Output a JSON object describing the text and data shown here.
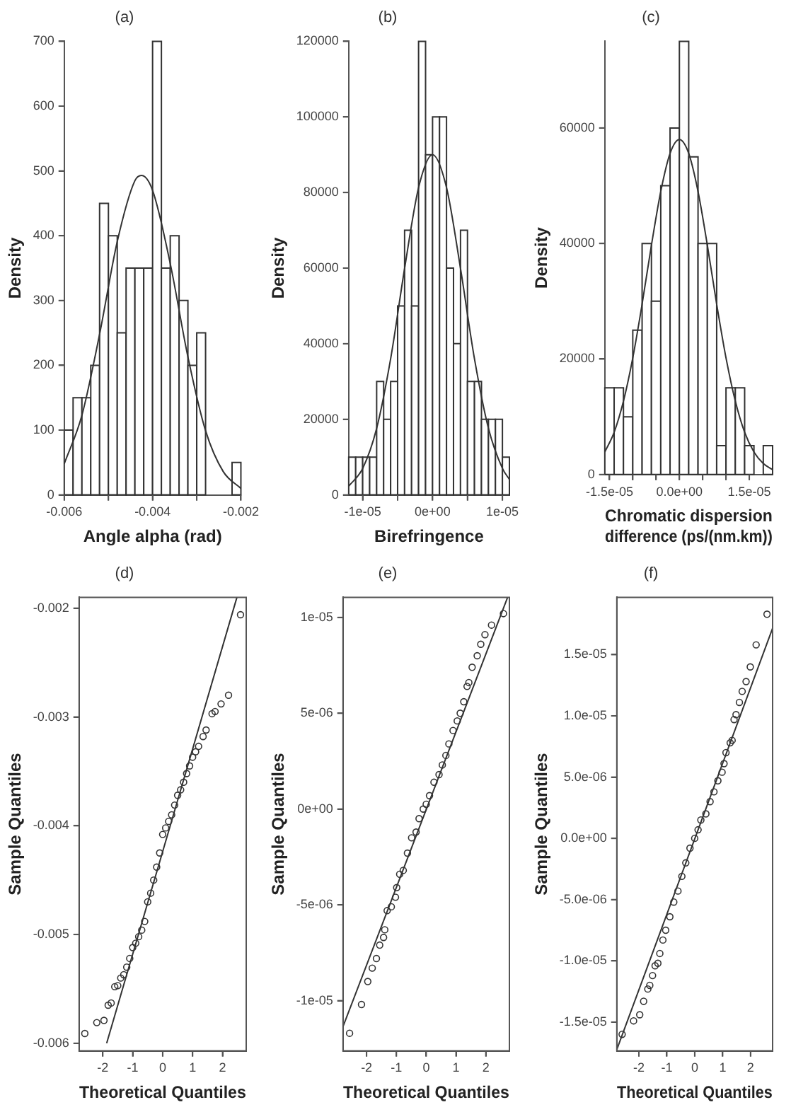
{
  "chart_data": [
    {
      "type": "histogram",
      "title": "(a)",
      "xlabel": "Angle alpha (rad)",
      "ylabel": "Density",
      "xlim": [
        -0.006,
        -0.002
      ],
      "xticks": [
        -0.006,
        {
          "value": -0.005,
          "label": null
        },
        -0.004,
        {
          "value": -0.003,
          "label": null
        },
        -0.002
      ],
      "ylim": [
        0,
        700
      ],
      "yticks": [
        0,
        100,
        200,
        300,
        400,
        500,
        600,
        700
      ],
      "series": [
        {
          "type": "histogram",
          "color": "#ffffff",
          "bins": [
            -0.006,
            -0.0058,
            -0.0056,
            -0.0054,
            -0.0052,
            -0.005,
            -0.0048,
            -0.0046,
            -0.0044,
            -0.0042,
            -0.004,
            -0.0038,
            -0.0036,
            -0.0034,
            -0.0032,
            -0.003,
            -0.0028,
            -0.0026,
            -0.0024,
            -0.0022,
            -0.002
          ],
          "values": [
            100,
            150,
            150,
            200,
            450,
            400,
            250,
            350,
            350,
            350,
            700,
            350,
            400,
            300,
            200,
            250,
            0,
            0,
            0,
            50
          ]
        },
        {
          "type": "line",
          "color": "#333333",
          "x": [
            -0.006,
            -0.0056,
            -0.0052,
            -0.0048,
            -0.0044,
            -0.00425,
            -0.004,
            -0.0036,
            -0.0032,
            -0.0028,
            -0.0024,
            -0.002
          ],
          "values": [
            48,
            123,
            248,
            391,
            485,
            493,
            470,
            357,
            213,
            99,
            36,
            10
          ]
        }
      ]
    },
    {
      "type": "histogram",
      "title": "(b)",
      "xlabel": "Birefringence",
      "ylabel": "Density",
      "xlim": [
        -1.2e-05,
        1.1e-05
      ],
      "xticks": [
        {
          "value": -1e-05,
          "label": "-1e-05"
        },
        {
          "value": -5e-06,
          "label": null
        },
        {
          "value": 0,
          "label": "0e+00"
        },
        {
          "value": 5e-06,
          "label": null
        },
        {
          "value": 1e-05,
          "label": "1e-05"
        }
      ],
      "ylim": [
        0,
        120000
      ],
      "yticks": [
        0,
        20000,
        40000,
        60000,
        80000,
        100000,
        120000
      ],
      "series": [
        {
          "type": "histogram",
          "color": "#ffffff",
          "bins": [
            -1.2e-05,
            -1.1e-05,
            -1e-05,
            -9e-06,
            -8e-06,
            -7e-06,
            -6e-06,
            -5e-06,
            -4e-06,
            -3e-06,
            -2e-06,
            -1e-06,
            0,
            1e-06,
            2e-06,
            3e-06,
            4e-06,
            5e-06,
            6e-06,
            7e-06,
            8e-06,
            9e-06,
            1e-05,
            1.1e-05
          ],
          "values": [
            10000,
            10000,
            10000,
            10000,
            30000,
            20000,
            30000,
            50000,
            70000,
            50000,
            120000,
            90000,
            100000,
            100000,
            60000,
            40000,
            70000,
            30000,
            30000,
            20000,
            20000,
            20000,
            10000
          ]
        },
        {
          "type": "line",
          "color": "#333333",
          "x": [
            -1.2e-05,
            -1e-05,
            -8e-06,
            -6e-06,
            -4e-06,
            -2e-06,
            0,
            2e-06,
            4e-06,
            6e-06,
            8e-06,
            1e-05,
            1.1e-05
          ],
          "values": [
            2300,
            7000,
            17600,
            36000,
            59900,
            81300,
            90000,
            81300,
            59900,
            36000,
            17600,
            7000,
            4100
          ]
        }
      ]
    },
    {
      "type": "histogram",
      "title": "(c)",
      "xlabel": "Chromatic dispersion\ndifference (ps/(nm.km))",
      "ylabel": "Density",
      "xlim": [
        -1.6e-05,
        2e-05
      ],
      "xticks": [
        {
          "value": -1.5e-05,
          "label": "-1.5e-05"
        },
        {
          "value": -1e-05,
          "label": null
        },
        {
          "value": -5e-06,
          "label": null
        },
        {
          "value": 0,
          "label": "0.0e+00"
        },
        {
          "value": 5e-06,
          "label": null
        },
        {
          "value": 1e-05,
          "label": null
        },
        {
          "value": 1.5e-05,
          "label": "1.5e-05"
        }
      ],
      "ylim": [
        0,
        75000
      ],
      "yticks": [
        0,
        20000,
        40000,
        60000
      ],
      "series": [
        {
          "type": "histogram",
          "color": "#ffffff",
          "bins": [
            -1.6e-05,
            -1.4e-05,
            -1.2e-05,
            -1e-05,
            -8e-06,
            -6e-06,
            -4e-06,
            -2e-06,
            0,
            2e-06,
            4e-06,
            6e-06,
            8e-06,
            1e-05,
            1.2e-05,
            1.4e-05,
            1.6e-05,
            1.8e-05,
            2e-05
          ],
          "values": [
            15000,
            15000,
            10000,
            25000,
            40000,
            30000,
            50000,
            60000,
            75000,
            55000,
            40000,
            40000,
            5000,
            15000,
            15000,
            5000,
            0,
            5000
          ]
        },
        {
          "type": "line",
          "color": "#333333",
          "x": [
            -1.6e-05,
            -1.4e-05,
            -1.2e-05,
            -1e-05,
            -8e-06,
            -6e-06,
            -4e-06,
            -2e-06,
            0,
            2e-06,
            4e-06,
            6e-06,
            8e-06,
            1e-05,
            1.2e-05,
            1.4e-05,
            1.6e-05,
            1.8e-05,
            2e-05
          ],
          "values": [
            3900,
            7300,
            12700,
            20200,
            29500,
            39700,
            49000,
            55600,
            58000,
            55600,
            49000,
            39700,
            29500,
            20200,
            12700,
            7300,
            3900,
            1900,
            850
          ]
        }
      ]
    },
    {
      "type": "scatter",
      "title": "(d)",
      "xlabel": "Theoretical Quantiles",
      "ylabel": "Sample Quantiles",
      "xlim": [
        -2.79,
        2.79
      ],
      "xticks": [
        -2,
        -1,
        0,
        1,
        2
      ],
      "ylim": [
        -0.00607,
        -0.0019
      ],
      "yticks": [
        -0.006,
        -0.005,
        -0.004,
        -0.003,
        -0.002
      ],
      "series": [
        {
          "type": "scatter",
          "marker": "circle",
          "color": "#333333",
          "x": [
            -2.6,
            -2.2,
            -1.96,
            -1.82,
            -1.72,
            -1.6,
            -1.5,
            -1.4,
            -1.3,
            -1.2,
            -1.1,
            -1.0,
            -0.9,
            -0.8,
            -0.7,
            -0.6,
            -0.5,
            -0.4,
            -0.3,
            -0.2,
            -0.1,
            0,
            0.1,
            0.2,
            0.3,
            0.4,
            0.5,
            0.6,
            0.7,
            0.8,
            0.9,
            1.0,
            1.1,
            1.2,
            1.35,
            1.45,
            1.65,
            1.75,
            1.95,
            2.2,
            2.6
          ],
          "values": [
            -0.00591,
            -0.00581,
            -0.00579,
            -0.00565,
            -0.00563,
            -0.00548,
            -0.00547,
            -0.0054,
            -0.00537,
            -0.0053,
            -0.00522,
            -0.00512,
            -0.00508,
            -0.00502,
            -0.00496,
            -0.00488,
            -0.0047,
            -0.00462,
            -0.0045,
            -0.00438,
            -0.00425,
            -0.00408,
            -0.00402,
            -0.00396,
            -0.0039,
            -0.00381,
            -0.00372,
            -0.00367,
            -0.0036,
            -0.00352,
            -0.00345,
            -0.00337,
            -0.00332,
            -0.00327,
            -0.00318,
            -0.00312,
            -0.00297,
            -0.00295,
            -0.00288,
            -0.0028,
            -0.00206
          ]
        },
        {
          "type": "line",
          "color": "#333333",
          "x": [
            -1.87,
            2.48
          ],
          "values": [
            -0.006,
            -0.0019
          ]
        }
      ]
    },
    {
      "type": "scatter",
      "title": "(e)",
      "xlabel": "Theoretical Quantiles",
      "ylabel": "Sample Quantiles",
      "xlim": [
        -2.79,
        2.79
      ],
      "xticks": [
        -2,
        -1,
        0,
        1,
        2
      ],
      "ylim": [
        -1.262e-05,
        1.105e-05
      ],
      "yticks": [
        {
          "value": -1e-05,
          "label": "-1e-05"
        },
        {
          "value": -5e-06,
          "label": "-5e-06"
        },
        {
          "value": 0,
          "label": "0e+00"
        },
        {
          "value": 5e-06,
          "label": "5e-06"
        },
        {
          "value": 1e-05,
          "label": "1e-05"
        }
      ],
      "series": [
        {
          "type": "scatter",
          "marker": "circle",
          "color": "#333333",
          "x": [
            -2.57,
            -2.17,
            -1.96,
            -1.81,
            -1.67,
            -1.56,
            -1.43,
            -1.39,
            -1.31,
            -1.17,
            -1.03,
            -0.99,
            -0.89,
            -0.77,
            -0.63,
            -0.49,
            -0.34,
            -0.24,
            -0.1,
            0,
            0.11,
            0.26,
            0.43,
            0.54,
            0.66,
            0.76,
            0.9,
            1.04,
            1.14,
            1.26,
            1.37,
            1.43,
            1.54,
            1.71,
            1.83,
            1.97,
            2.19,
            2.59
          ],
          "values": [
            -1.17e-05,
            -1.02e-05,
            -9e-06,
            -8.3e-06,
            -7.8e-06,
            -7.1e-06,
            -6.7e-06,
            -6.3e-06,
            -5.3e-06,
            -5.1e-06,
            -4.6e-06,
            -4.1e-06,
            -3.4e-06,
            -3.2e-06,
            -2.3e-06,
            -1.5e-06,
            -1.2e-06,
            -5e-07,
            0,
            2.5e-07,
            7e-07,
            1.4e-06,
            1.8e-06,
            2.3e-06,
            2.8e-06,
            3.4e-06,
            4.1e-06,
            4.6e-06,
            5e-06,
            5.6e-06,
            6.4e-06,
            6.6e-06,
            7.4e-06,
            8e-06,
            8.6e-06,
            9.1e-06,
            9.6e-06,
            1.02e-05
          ]
        },
        {
          "type": "line",
          "color": "#333333",
          "x": [
            -2.79,
            2.73
          ],
          "values": [
            -1.135e-05,
            1.105e-05
          ]
        }
      ]
    },
    {
      "type": "scatter",
      "title": "(f)",
      "xlabel": "Theoretical Quantiles",
      "ylabel": "Sample Quantiles",
      "xlim": [
        -2.79,
        2.79
      ],
      "xticks": [
        -2,
        -1,
        0,
        1,
        2
      ],
      "ylim": [
        -1.735e-05,
        1.968e-05
      ],
      "yticks": [
        {
          "value": -1.5e-05,
          "label": "-1.5e-05"
        },
        {
          "value": -1e-05,
          "label": "-1.0e-05"
        },
        {
          "value": -5e-06,
          "label": "-5.0e-06"
        },
        {
          "value": 0,
          "label": "0.0e+00"
        },
        {
          "value": 5e-06,
          "label": "5.0e-06"
        },
        {
          "value": 1e-05,
          "label": "1.0e-05"
        },
        {
          "value": 1.5e-05,
          "label": "1.5e-05"
        }
      ],
      "series": [
        {
          "type": "scatter",
          "marker": "circle",
          "color": "#333333",
          "x": [
            -2.6,
            -2.19,
            -1.97,
            -1.83,
            -1.68,
            -1.61,
            -1.51,
            -1.42,
            -1.32,
            -1.25,
            -1.14,
            -1.04,
            -0.89,
            -0.75,
            -0.6,
            -0.46,
            -0.32,
            -0.17,
            0,
            0.12,
            0.22,
            0.4,
            0.55,
            0.69,
            0.83,
            0.98,
            1.05,
            1.12,
            1.27,
            1.34,
            1.41,
            1.48,
            1.6,
            1.7,
            1.84,
            1.99,
            2.2,
            2.59
          ],
          "values": [
            -1.6e-05,
            -1.49e-05,
            -1.44e-05,
            -1.33e-05,
            -1.23e-05,
            -1.2e-05,
            -1.12e-05,
            -1.04e-05,
            -1.02e-05,
            -9.4e-06,
            -8.3e-06,
            -7.5e-06,
            -6.4e-06,
            -5.2e-06,
            -4.3e-06,
            -3.1e-06,
            -2e-06,
            -8e-07,
            0,
            7e-07,
            1.5e-06,
            2e-06,
            3e-06,
            3.8e-06,
            4.7e-06,
            5.4e-06,
            6.1e-06,
            7e-06,
            7.8e-06,
            8e-06,
            9.7e-06,
            1.01e-05,
            1.11e-05,
            1.2e-05,
            1.28e-05,
            1.4e-05,
            1.58e-05,
            1.83e-05
          ]
        },
        {
          "type": "line",
          "color": "#333333",
          "x": [
            -2.79,
            2.79
          ],
          "values": [
            -1.724e-05,
            1.716e-05
          ]
        }
      ]
    }
  ]
}
